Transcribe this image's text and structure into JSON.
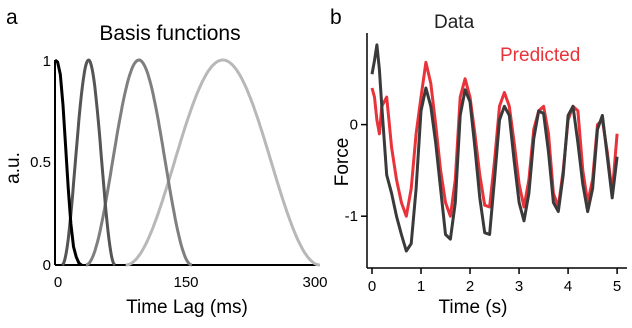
{
  "chart_data": [
    {
      "panel_letter": "a",
      "type": "line",
      "title": "Basis functions",
      "xlabel": "Time Lag (ms)",
      "ylabel": "a.u.",
      "xlim": [
        0,
        300
      ],
      "ylim": [
        0,
        1
      ],
      "xticks": [
        "0",
        "150",
        "300"
      ],
      "yticks": [
        "0",
        "0.5",
        "1"
      ],
      "grid": false,
      "series": [
        {
          "color": "#000000",
          "kind": "decay",
          "values": {
            "x": [
              0,
              3,
              6,
              9,
              12,
              15,
              18,
              21,
              24,
              27,
              30
            ],
            "y": [
              1.0,
              0.99,
              0.93,
              0.78,
              0.58,
              0.37,
              0.2,
              0.09,
              0.04,
              0.01,
              0.0
            ]
          }
        },
        {
          "color": "#555555",
          "kind": "bump",
          "center": 38,
          "width": 30,
          "start": 5
        },
        {
          "color": "#7f7f7f",
          "kind": "bump",
          "center": 95,
          "width": 60,
          "start": 5
        },
        {
          "color": "#b8b8b8",
          "kind": "bump",
          "center": 190,
          "width": 110,
          "start": 5
        }
      ]
    },
    {
      "panel_letter": "b",
      "type": "line",
      "title": "",
      "xlabel": "Time (s)",
      "ylabel": "Force",
      "xlim": [
        0,
        5.1
      ],
      "ylim": [
        -1.5,
        1.0
      ],
      "xticks": [
        "0",
        "1",
        "2",
        "3",
        "4",
        "5"
      ],
      "yticks": [
        "-1",
        "0"
      ],
      "legend_position": "top-right",
      "grid": false,
      "series": [
        {
          "name": "Data",
          "color": "#3a3a3a",
          "x": [
            0.0,
            0.05,
            0.1,
            0.15,
            0.2,
            0.3,
            0.4,
            0.5,
            0.6,
            0.7,
            0.8,
            0.9,
            1.0,
            1.1,
            1.2,
            1.3,
            1.4,
            1.5,
            1.6,
            1.7,
            1.8,
            1.9,
            2.0,
            2.1,
            2.2,
            2.3,
            2.4,
            2.5,
            2.6,
            2.7,
            2.8,
            2.9,
            3.0,
            3.1,
            3.2,
            3.3,
            3.4,
            3.5,
            3.6,
            3.7,
            3.8,
            3.9,
            4.0,
            4.1,
            4.2,
            4.3,
            4.4,
            4.5,
            4.6,
            4.7,
            4.8,
            4.9,
            5.0
          ],
          "y": [
            0.55,
            0.7,
            0.87,
            0.6,
            0.2,
            -0.55,
            -0.75,
            -1.0,
            -1.2,
            -1.38,
            -1.3,
            -0.7,
            0.15,
            0.4,
            0.2,
            -0.2,
            -0.7,
            -1.2,
            -1.25,
            -0.85,
            0.1,
            0.38,
            0.25,
            -0.25,
            -0.8,
            -1.18,
            -1.2,
            -0.6,
            0.05,
            0.2,
            0.1,
            -0.4,
            -0.85,
            -1.05,
            -0.75,
            -0.15,
            0.15,
            0.12,
            -0.3,
            -0.85,
            -0.95,
            -0.55,
            0.1,
            0.2,
            -0.2,
            -0.65,
            -0.95,
            -0.7,
            -0.05,
            0.1,
            -0.35,
            -0.8,
            -0.35
          ]
        },
        {
          "name": "Predicted",
          "color": "#e8333a",
          "x": [
            0.0,
            0.05,
            0.1,
            0.15,
            0.2,
            0.3,
            0.4,
            0.5,
            0.6,
            0.7,
            0.8,
            0.9,
            1.0,
            1.1,
            1.2,
            1.3,
            1.4,
            1.5,
            1.6,
            1.7,
            1.8,
            1.9,
            2.0,
            2.1,
            2.2,
            2.3,
            2.4,
            2.5,
            2.6,
            2.7,
            2.8,
            2.9,
            3.0,
            3.1,
            3.2,
            3.3,
            3.4,
            3.5,
            3.6,
            3.7,
            3.8,
            3.9,
            4.0,
            4.1,
            4.2,
            4.3,
            4.4,
            4.5,
            4.6,
            4.7,
            4.8,
            4.9,
            5.0
          ],
          "y": [
            0.4,
            0.3,
            0.05,
            -0.1,
            0.2,
            0.3,
            -0.25,
            -0.6,
            -0.85,
            -1.0,
            -0.7,
            -0.1,
            0.3,
            0.68,
            0.45,
            0.0,
            -0.5,
            -0.85,
            -1.0,
            -0.6,
            0.3,
            0.5,
            0.3,
            -0.1,
            -0.55,
            -0.88,
            -0.9,
            -0.4,
            0.2,
            0.35,
            0.2,
            -0.2,
            -0.65,
            -0.9,
            -0.6,
            -0.05,
            0.15,
            0.2,
            -0.1,
            -0.75,
            -0.9,
            -0.5,
            0.05,
            0.2,
            0.15,
            -0.5,
            -0.85,
            -0.6,
            0.0,
            0.05,
            -0.3,
            -0.75,
            -0.1
          ]
        }
      ]
    }
  ]
}
